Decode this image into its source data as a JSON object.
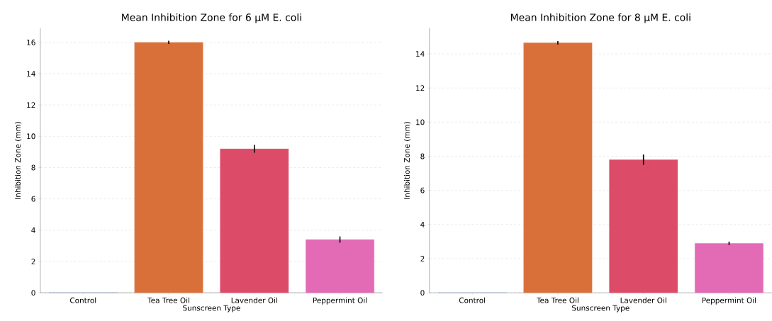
{
  "chart_data": [
    {
      "type": "bar",
      "title": "Mean Inhibition Zone for 6 µM E. coli",
      "xlabel": "Sunscreen Type",
      "ylabel": "Inhibition Zone (mm)",
      "categories": [
        "Control",
        "Tea Tree Oil",
        "Lavender Oil",
        "Peppermint Oil"
      ],
      "values": [
        0,
        16.0,
        9.2,
        3.4
      ],
      "errors": [
        null,
        0.1,
        0.25,
        0.2
      ],
      "colors": [
        "#4c72b0",
        "#d9703a",
        "#dc4b67",
        "#e36ab5"
      ],
      "ylim": [
        0,
        16.9
      ],
      "yticks": [
        0,
        2,
        4,
        6,
        8,
        10,
        12,
        14,
        16
      ],
      "grid": "y"
    },
    {
      "type": "bar",
      "title": "Mean Inhibition Zone for 8 µM E. coli",
      "xlabel": "Sunscreen Type",
      "ylabel": "Inhibition Zone (mm)",
      "categories": [
        "Control",
        "Tea Tree Oil",
        "Lavender Oil",
        "Peppermint Oil"
      ],
      "values": [
        0,
        14.65,
        7.8,
        2.9
      ],
      "errors": [
        null,
        0.1,
        0.3,
        0.1
      ],
      "colors": [
        "#4c72b0",
        "#d9703a",
        "#dc4b67",
        "#e36ab5"
      ],
      "ylim": [
        0,
        15.5
      ],
      "yticks": [
        0,
        2,
        4,
        6,
        8,
        10,
        12,
        14
      ],
      "grid": "y"
    }
  ]
}
